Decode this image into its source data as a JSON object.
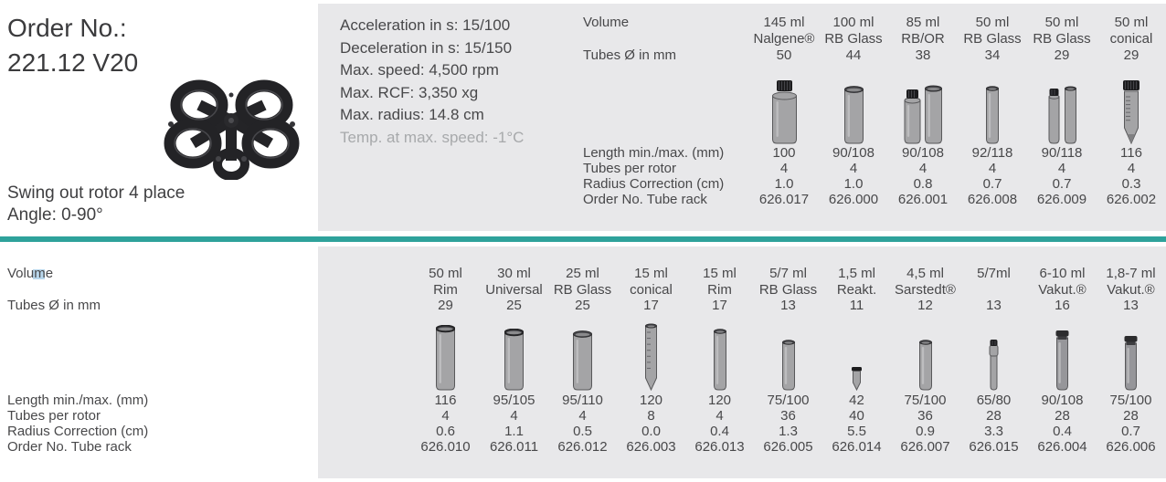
{
  "colors": {
    "accent_teal": "#2ea29b",
    "panel_gray": "#e8e8ea",
    "muted_text": "#a7a9ab"
  },
  "product": {
    "order_label": "Order No.:",
    "order_number": "221.12 V20",
    "rotor_name": "Swing out rotor 4 place",
    "angle": "Angle: 0-90°"
  },
  "specs": {
    "acceleration": "Acceleration in s: 15/100",
    "deceleration": "Deceleration in s: 15/150",
    "max_speed": "Max. speed: 4,500 rpm",
    "max_rcf": "Max. RCF: 3,350 xg",
    "max_radius": "Max. radius: 14.8 cm",
    "temp_at_max_speed": "Temp. at max. speed: -1°C"
  },
  "row_labels": {
    "volume": "Volume",
    "diameter": "Tubes Ø in mm",
    "length": "Length min./max. (mm)",
    "tubes_per_rotor": "Tubes per rotor",
    "radius_correction": "Radius Correction (cm)",
    "order_no": "Order No. Tube rack"
  },
  "table1": {
    "columns": [
      {
        "volume": "145 ml",
        "type": "Nalgene®",
        "diameter": "50",
        "icon": "bottle-capped@70",
        "length": "100",
        "per_rotor": "4",
        "radius": "1.0",
        "order": "626.017"
      },
      {
        "volume": "100 ml",
        "type": "RB Glass",
        "diameter": "44",
        "icon": "open-cylinder@64",
        "length": "90/108",
        "per_rotor": "4",
        "radius": "1.0",
        "order": "626.000"
      },
      {
        "volume": "85 ml",
        "type": "RB/OR",
        "diameter": "38",
        "icon": "pair-capped-open@66",
        "length": "90/108",
        "per_rotor": "4",
        "radius": "0.8",
        "order": "626.001"
      },
      {
        "volume": "50 ml",
        "type": "RB Glass",
        "diameter": "34",
        "icon": "thin-open@64",
        "length": "92/118",
        "per_rotor": "4",
        "radius": "0.7",
        "order": "626.008"
      },
      {
        "volume": "50 ml",
        "type": "RB Glass",
        "diameter": "29",
        "icon": "pair-thin@64",
        "length": "90/118",
        "per_rotor": "4",
        "radius": "0.7",
        "order": "626.009"
      },
      {
        "volume": "50 ml",
        "type": "conical",
        "diameter": "29",
        "icon": "conical-capped@70",
        "length": "116",
        "per_rotor": "4",
        "radius": "0.3",
        "order": "626.002"
      }
    ]
  },
  "table2": {
    "columns": [
      {
        "volume": "50 ml",
        "type": "Rim",
        "diameter": "29",
        "icon": "rim-open@72",
        "length": "116",
        "per_rotor": "4",
        "radius": "0.6",
        "order": "626.010"
      },
      {
        "volume": "30 ml",
        "type": "Universal",
        "diameter": "25",
        "icon": "rim-open@68",
        "length": "95/105",
        "per_rotor": "4",
        "radius": "1.1",
        "order": "626.011"
      },
      {
        "volume": "25 ml",
        "type": "RB Glass",
        "diameter": "25",
        "icon": "open-cylinder@66",
        "length": "95/110",
        "per_rotor": "4",
        "radius": "0.5",
        "order": "626.012"
      },
      {
        "volume": "15 ml",
        "type": "conical",
        "diameter": "17",
        "icon": "conical-grad@74",
        "length": "120",
        "per_rotor": "8",
        "radius": "0.0",
        "order": "626.003"
      },
      {
        "volume": "15 ml",
        "type": "Rim",
        "diameter": "17",
        "icon": "thin-open@68",
        "length": "120",
        "per_rotor": "4",
        "radius": "0.4",
        "order": "626.013"
      },
      {
        "volume": "5/7 ml",
        "type": "RB Glass",
        "diameter": "13",
        "icon": "thin-open@56",
        "length": "75/100",
        "per_rotor": "36",
        "radius": "1.3",
        "order": "626.005"
      },
      {
        "volume": "1,5 ml",
        "type": "Reakt.",
        "diameter": "11",
        "icon": "micro-tube@26",
        "length": "42",
        "per_rotor": "40",
        "radius": "5.5",
        "order": "626.014"
      },
      {
        "volume": "4,5 ml",
        "type": "Sarstedt®",
        "diameter": "12",
        "icon": "thin-open@56",
        "length": "75/100",
        "per_rotor": "36",
        "radius": "0.9",
        "order": "626.007"
      },
      {
        "volume": "5/7ml",
        "type": "",
        "diameter": "13",
        "icon": "vacu-narrow@56",
        "length": "65/80",
        "per_rotor": "28",
        "radius": "3.3",
        "order": "626.015"
      },
      {
        "volume": "6-10 ml",
        "type": "Vakut.®",
        "diameter": "16",
        "icon": "vacu-capped@66",
        "length": "90/108",
        "per_rotor": "28",
        "radius": "0.4",
        "order": "626.004"
      },
      {
        "volume": "1,8-7 ml",
        "type": "Vakut.®",
        "diameter": "13",
        "icon": "vacu-capped@60",
        "length": "75/100",
        "per_rotor": "28",
        "radius": "0.7",
        "order": "626.006"
      }
    ]
  }
}
